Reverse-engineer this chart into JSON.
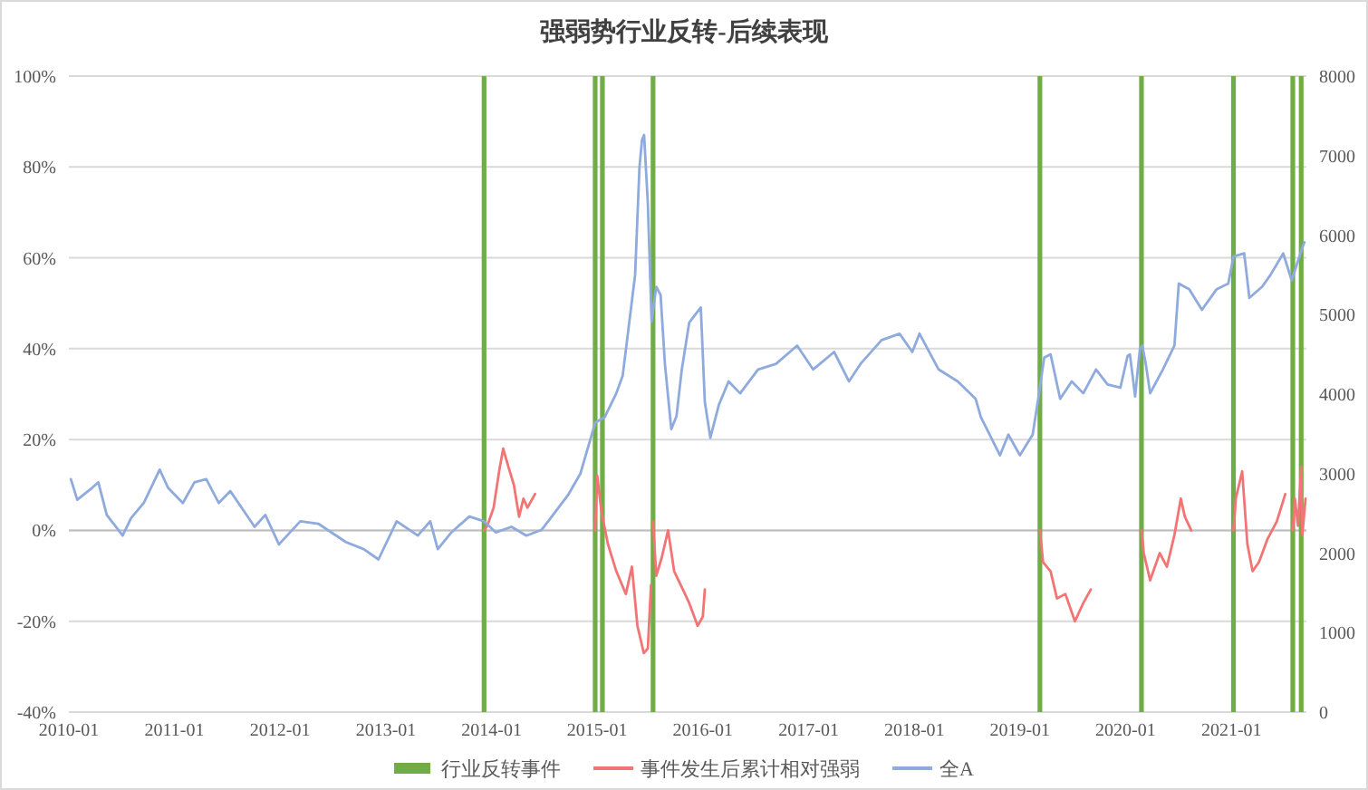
{
  "chart_data": {
    "type": "line",
    "title": "强弱势行业反转-后续表现",
    "xlim": [
      "2010-01-01",
      "2021-09-17"
    ],
    "xticks": [
      "2010-01",
      "2011-01",
      "2012-01",
      "2013-01",
      "2014-01",
      "2015-01",
      "2016-01",
      "2017-01",
      "2018-01",
      "2019-01",
      "2020-01",
      "2021-01"
    ],
    "ylim": [
      -40,
      100
    ],
    "yticks": [
      {
        "value": -40,
        "label": "-40%"
      },
      {
        "value": -20,
        "label": "-20%"
      },
      {
        "value": 0,
        "label": "0%"
      },
      {
        "value": 20,
        "label": "20%"
      },
      {
        "value": 40,
        "label": "40%"
      },
      {
        "value": 60,
        "label": "60%"
      },
      {
        "value": 80,
        "label": "80%"
      },
      {
        "value": 100,
        "label": "100%"
      }
    ],
    "y2lim": [
      0,
      8000
    ],
    "y2ticks": [
      0,
      1000,
      2000,
      3000,
      4000,
      5000,
      6000,
      7000,
      8000
    ],
    "grid": "y",
    "legend": "bottom",
    "series": [
      {
        "name": "行业反转事件",
        "type": "bar",
        "axis": "y2",
        "color": "#70ad47",
        "x": [
          "2013-12-06",
          "2014-12-25",
          "2015-01-19",
          "2015-07-13",
          "2019-03-11",
          "2020-02-25",
          "2021-01-08",
          "2021-08-01",
          "2021-08-30"
        ],
        "values": [
          8000,
          8000,
          8000,
          8000,
          8000,
          8000,
          8000,
          8000,
          8000
        ]
      },
      {
        "name": "事件发生后累计相对强弱",
        "color": "#f27474",
        "x": [
          "2013-12-06",
          "2013-12-17",
          "2014-01-08",
          "2014-01-27",
          "2014-02-10",
          "2014-02-28",
          "2014-03-19",
          "2014-04-06",
          "2014-04-21",
          "2014-05-05",
          "2014-05-31"
        ],
        "values": [
          0,
          1,
          5,
          13,
          18,
          14,
          10,
          3,
          7,
          5,
          8
        ]
      },
      {
        "color": "#f27474",
        "x": [
          "2014-12-25",
          "2015-01-01",
          "2015-01-16",
          "2015-02-07",
          "2015-03-08",
          "2015-04-10",
          "2015-05-01",
          "2015-05-20",
          "2015-06-11",
          "2015-06-25",
          "2015-07-06"
        ],
        "values": [
          0,
          12,
          4,
          -3,
          -9,
          -14,
          -8,
          -21,
          -27,
          -26,
          -12
        ]
      },
      {
        "color": "#f27474",
        "x": [
          "2015-07-13",
          "2015-07-24",
          "2015-08-12",
          "2015-09-03",
          "2015-09-24",
          "2015-10-24",
          "2015-11-15",
          "2015-12-14",
          "2016-01-01",
          "2016-01-08"
        ],
        "values": [
          2,
          -10,
          -6,
          0,
          -9,
          -13,
          -16,
          -21,
          -19,
          -13
        ]
      },
      {
        "color": "#f27474",
        "x": [
          "2019-03-11",
          "2019-03-22",
          "2019-04-17",
          "2019-05-09",
          "2019-06-07",
          "2019-07-10",
          "2019-08-08",
          "2019-09-03"
        ],
        "values": [
          0,
          -7,
          -9,
          -15,
          -14,
          -20,
          -16,
          -13
        ]
      },
      {
        "color": "#f27474",
        "x": [
          "2020-02-25",
          "2020-03-04",
          "2020-03-26",
          "2020-04-28",
          "2020-05-23",
          "2020-06-18",
          "2020-07-10",
          "2020-07-24",
          "2020-08-15"
        ],
        "values": [
          0,
          -5,
          -11,
          -5,
          -8,
          -1,
          7,
          3,
          0
        ]
      },
      {
        "color": "#f27474",
        "x": [
          "2021-01-08",
          "2021-01-16",
          "2021-02-07",
          "2021-02-25",
          "2021-03-15",
          "2021-04-06",
          "2021-05-05",
          "2021-06-07",
          "2021-07-06"
        ],
        "values": [
          0,
          7,
          13,
          -3,
          -9,
          -7,
          -2,
          2,
          8
        ]
      },
      {
        "color": "#f27474",
        "x": [
          "2021-08-01",
          "2021-08-08",
          "2021-08-19",
          "2021-08-30",
          "2021-09-03",
          "2021-09-14"
        ],
        "values": [
          0,
          7,
          1,
          14,
          -1,
          7
        ]
      },
      {
        "name": "全A",
        "axis": "y2",
        "color": "#8faadc",
        "x": [
          "2010-01-08",
          "2010-01-30",
          "2010-03-22",
          "2010-04-13",
          "2010-05-12",
          "2010-07-06",
          "2010-08-04",
          "2010-09-17",
          "2010-11-11",
          "2010-12-10",
          "2011-01-30",
          "2011-03-11",
          "2011-04-21",
          "2011-06-03",
          "2011-07-13",
          "2011-10-05",
          "2011-11-11",
          "2011-12-28",
          "2012-03-11",
          "2012-05-12",
          "2012-08-15",
          "2012-10-16",
          "2012-12-06",
          "2013-02-07",
          "2013-04-21",
          "2013-06-03",
          "2013-06-29",
          "2013-08-15",
          "2013-10-16",
          "2013-12-06",
          "2014-01-16",
          "2014-03-11",
          "2014-05-01",
          "2014-06-22",
          "2014-07-24",
          "2014-09-24",
          "2014-11-04",
          "2014-12-25",
          "2015-01-27",
          "2015-03-08",
          "2015-03-30",
          "2015-05-12",
          "2015-05-27",
          "2015-06-05",
          "2015-06-12",
          "2015-06-25",
          "2015-07-08",
          "2015-07-24",
          "2015-08-08",
          "2015-08-23",
          "2015-09-14",
          "2015-10-02",
          "2015-10-20",
          "2015-11-15",
          "2015-12-25",
          "2016-01-08",
          "2016-01-27",
          "2016-02-25",
          "2016-03-30",
          "2016-05-09",
          "2016-07-10",
          "2016-09-10",
          "2016-11-22",
          "2017-01-16",
          "2017-03-30",
          "2017-05-20",
          "2017-06-29",
          "2017-09-10",
          "2017-11-11",
          "2017-12-25",
          "2018-01-19",
          "2018-03-26",
          "2018-05-31",
          "2018-08-01",
          "2018-08-19",
          "2018-10-24",
          "2018-11-22",
          "2019-01-01",
          "2019-02-14",
          "2019-03-08",
          "2019-03-26",
          "2019-04-17",
          "2019-05-20",
          "2019-06-29",
          "2019-08-08",
          "2019-09-21",
          "2019-10-31",
          "2019-12-14",
          "2019-12-31",
          "2020-01-08",
          "2020-01-16",
          "2020-01-23",
          "2020-02-03",
          "2020-02-12",
          "2020-02-20",
          "2020-02-28",
          "2020-03-10",
          "2020-03-26",
          "2020-05-09",
          "2020-06-18",
          "2020-07-03",
          "2020-08-08",
          "2020-09-21",
          "2020-11-11",
          "2020-12-21",
          "2021-01-08",
          "2021-02-14",
          "2021-03-04",
          "2021-04-17",
          "2021-05-16",
          "2021-06-29",
          "2021-07-28",
          "2021-08-30",
          "2021-09-10"
        ],
        "values": [
          2930,
          2670,
          2820,
          2890,
          2480,
          2220,
          2440,
          2630,
          3050,
          2820,
          2630,
          2890,
          2930,
          2630,
          2780,
          2330,
          2480,
          2110,
          2400,
          2370,
          2140,
          2050,
          1920,
          2400,
          2220,
          2400,
          2050,
          2260,
          2460,
          2400,
          2260,
          2330,
          2220,
          2290,
          2440,
          2740,
          3000,
          3640,
          3710,
          4010,
          4230,
          5500,
          6850,
          7200,
          7260,
          6400,
          4910,
          5350,
          5250,
          4380,
          3560,
          3720,
          4300,
          4900,
          5090,
          3900,
          3450,
          3860,
          4160,
          4010,
          4310,
          4380,
          4610,
          4310,
          4530,
          4160,
          4380,
          4680,
          4760,
          4530,
          4760,
          4310,
          4160,
          3940,
          3710,
          3230,
          3490,
          3230,
          3490,
          4010,
          4460,
          4500,
          3940,
          4160,
          4010,
          4310,
          4120,
          4080,
          4350,
          4480,
          4500,
          4300,
          3970,
          4300,
          4580,
          4610,
          4400,
          4010,
          4310,
          4610,
          5390,
          5320,
          5060,
          5320,
          5390,
          5730,
          5770,
          5210,
          5350,
          5500,
          5770,
          5430,
          5800,
          5910
        ]
      }
    ]
  }
}
